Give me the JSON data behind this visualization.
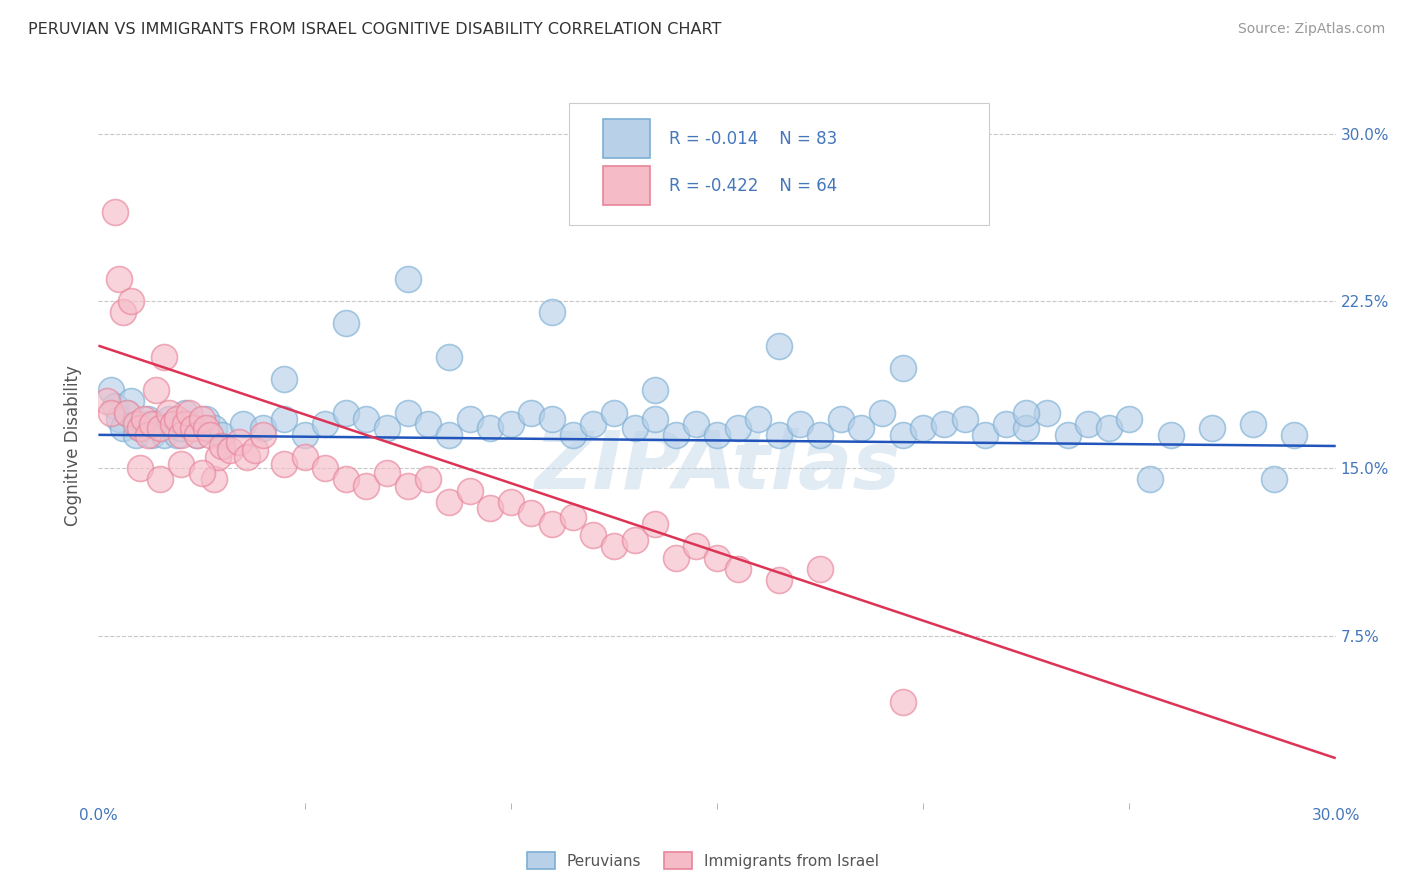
{
  "title": "PERUVIAN VS IMMIGRANTS FROM ISRAEL COGNITIVE DISABILITY CORRELATION CHART",
  "source": "Source: ZipAtlas.com",
  "ylabel": "Cognitive Disability",
  "xlim": [
    0.0,
    30.0
  ],
  "ylim": [
    0.0,
    32.0
  ],
  "yticks_right": [
    7.5,
    15.0,
    22.5,
    30.0
  ],
  "grid_color": "#c8c8c8",
  "background_color": "#ffffff",
  "blue_edge": "#7bafd4",
  "blue_face": "#b8d0e8",
  "pink_edge": "#e8849a",
  "pink_face": "#f5bcc8",
  "legend_R1": "R = -0.014",
  "legend_N1": "N = 83",
  "legend_R2": "R = -0.422",
  "legend_N2": "N = 64",
  "legend_label1": "Peruvians",
  "legend_label2": "Immigrants from Israel",
  "watermark": "ZIPAtlas",
  "title_color": "#333333",
  "axis_label_color": "#555555",
  "tick_color": "#4477bb",
  "trend_blue": "#2255bb",
  "trend_pink": "#dd3355",
  "blue_scatter_x": [
    0.3,
    0.4,
    0.5,
    0.6,
    0.7,
    0.8,
    0.9,
    1.0,
    1.1,
    1.2,
    1.3,
    1.4,
    1.5,
    1.6,
    1.7,
    1.8,
    1.9,
    2.0,
    2.1,
    2.2,
    2.4,
    2.6,
    2.8,
    3.0,
    3.5,
    4.0,
    4.5,
    5.0,
    5.5,
    6.0,
    6.5,
    7.0,
    7.5,
    8.0,
    8.5,
    9.0,
    9.5,
    10.0,
    10.5,
    11.0,
    11.5,
    12.0,
    12.5,
    13.0,
    13.5,
    14.0,
    14.5,
    15.0,
    15.5,
    16.0,
    16.5,
    17.0,
    17.5,
    18.0,
    18.5,
    19.0,
    19.5,
    20.0,
    20.5,
    21.0,
    21.5,
    22.0,
    22.5,
    23.0,
    23.5,
    24.0,
    24.5,
    25.0,
    26.0,
    27.0,
    28.0,
    29.0,
    6.0,
    8.5,
    11.0,
    13.5,
    16.5,
    19.5,
    22.5,
    25.5,
    28.5,
    4.5,
    7.5
  ],
  "blue_scatter_y": [
    18.5,
    17.8,
    17.2,
    16.8,
    17.5,
    18.0,
    16.5,
    16.8,
    17.0,
    17.2,
    16.5,
    17.0,
    16.8,
    16.5,
    17.2,
    17.0,
    16.5,
    16.8,
    17.5,
    17.0,
    16.5,
    17.2,
    16.8,
    16.5,
    17.0,
    16.8,
    17.2,
    16.5,
    17.0,
    17.5,
    17.2,
    16.8,
    17.5,
    17.0,
    16.5,
    17.2,
    16.8,
    17.0,
    17.5,
    17.2,
    16.5,
    17.0,
    17.5,
    16.8,
    17.2,
    16.5,
    17.0,
    16.5,
    16.8,
    17.2,
    16.5,
    17.0,
    16.5,
    17.2,
    16.8,
    17.5,
    16.5,
    16.8,
    17.0,
    17.2,
    16.5,
    17.0,
    16.8,
    17.5,
    16.5,
    17.0,
    16.8,
    17.2,
    16.5,
    16.8,
    17.0,
    16.5,
    21.5,
    20.0,
    22.0,
    18.5,
    20.5,
    19.5,
    17.5,
    14.5,
    14.5,
    19.0,
    23.5
  ],
  "pink_scatter_x": [
    0.2,
    0.3,
    0.4,
    0.5,
    0.6,
    0.7,
    0.8,
    0.9,
    1.0,
    1.1,
    1.2,
    1.3,
    1.4,
    1.5,
    1.6,
    1.7,
    1.8,
    1.9,
    2.0,
    2.1,
    2.2,
    2.3,
    2.4,
    2.5,
    2.6,
    2.7,
    2.8,
    2.9,
    3.0,
    3.2,
    3.4,
    3.6,
    3.8,
    4.0,
    4.5,
    5.0,
    5.5,
    6.0,
    6.5,
    7.0,
    7.5,
    8.0,
    8.5,
    9.0,
    9.5,
    10.0,
    10.5,
    11.0,
    11.5,
    12.0,
    12.5,
    13.0,
    13.5,
    14.0,
    14.5,
    15.0,
    15.5,
    16.5,
    17.5,
    19.5,
    1.0,
    1.5,
    2.0,
    2.5
  ],
  "pink_scatter_y": [
    18.0,
    17.5,
    26.5,
    23.5,
    22.0,
    17.5,
    22.5,
    17.0,
    16.8,
    17.2,
    16.5,
    17.0,
    18.5,
    16.8,
    20.0,
    17.5,
    17.0,
    17.2,
    16.5,
    17.0,
    17.5,
    16.8,
    16.5,
    17.2,
    16.8,
    16.5,
    14.5,
    15.5,
    16.0,
    15.8,
    16.2,
    15.5,
    15.8,
    16.5,
    15.2,
    15.5,
    15.0,
    14.5,
    14.2,
    14.8,
    14.2,
    14.5,
    13.5,
    14.0,
    13.2,
    13.5,
    13.0,
    12.5,
    12.8,
    12.0,
    11.5,
    11.8,
    12.5,
    11.0,
    11.5,
    11.0,
    10.5,
    10.0,
    10.5,
    4.5,
    15.0,
    14.5,
    15.2,
    14.8
  ],
  "blue_trendline_x": [
    0.0,
    30.0
  ],
  "blue_trendline_y": [
    16.5,
    16.0
  ],
  "pink_trendline_x": [
    0.0,
    30.0
  ],
  "pink_trendline_y": [
    20.5,
    2.0
  ]
}
